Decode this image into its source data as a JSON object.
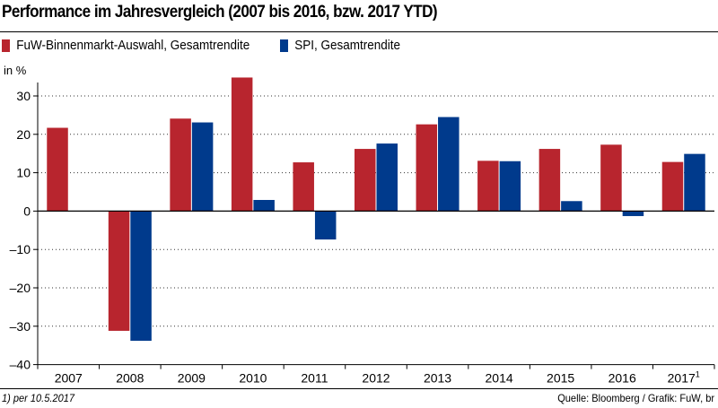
{
  "title": "Performance im Jahresvergleich (2007 bis 2016, bzw. 2017 YTD)",
  "unit_label": "in %",
  "footnote": "1) per 10.5.2017",
  "source": "Quelle: Bloomberg / Grafik: FuW, br",
  "chart_data": {
    "type": "bar",
    "title": "Performance im Jahresvergleich (2007 bis 2016, bzw. 2017 YTD)",
    "ylabel": "in %",
    "ylim": [
      -40,
      35
    ],
    "yticks": [
      30,
      20,
      10,
      0,
      -10,
      -20,
      -30,
      -40
    ],
    "ytick_labels": [
      "30",
      "20",
      "10",
      "0",
      "–10",
      "–20",
      "–30",
      "–40"
    ],
    "grid": true,
    "legend_position": "top-left",
    "categories": [
      "2007",
      "2008",
      "2009",
      "2010",
      "2011",
      "2012",
      "2013",
      "2014",
      "2015",
      "2016",
      "2017"
    ],
    "category_superscripts": [
      "",
      "",
      "",
      "",
      "",
      "",
      "",
      "",
      "",
      "",
      "1"
    ],
    "series": [
      {
        "name": "FuW-Binnenmarkt-Auswahl, Gesamtrendite",
        "color": "#b8252e",
        "values": [
          21.7,
          -31.2,
          24.1,
          34.8,
          12.7,
          16.2,
          22.6,
          13.1,
          16.2,
          17.3,
          12.8
        ]
      },
      {
        "name": "SPI, Gesamtrendite",
        "color": "#003a8c",
        "values": [
          null,
          -33.8,
          23.1,
          2.9,
          -7.4,
          17.6,
          24.5,
          13.0,
          2.6,
          -1.3,
          14.9
        ]
      }
    ]
  }
}
